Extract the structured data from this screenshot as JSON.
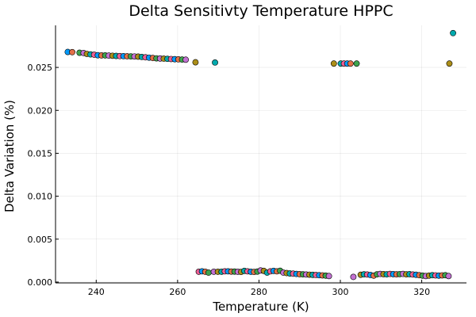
{
  "chart_data": {
    "type": "scatter",
    "title": "Delta Sensitivty Temperature HPPC",
    "xlabel": "Temperature (K)",
    "ylabel": "Delta Variation (%)",
    "xlim": [
      230,
      331
    ],
    "ylim": [
      -0.0001,
      0.0299
    ],
    "xticks": [
      {
        "value": 240,
        "label": "240"
      },
      {
        "value": 260,
        "label": "260"
      },
      {
        "value": 280,
        "label": "280"
      },
      {
        "value": 300,
        "label": "300"
      },
      {
        "value": 320,
        "label": "320"
      }
    ],
    "yticks": [
      {
        "value": 0.0,
        "label": "0.000"
      },
      {
        "value": 0.005,
        "label": "0.005"
      },
      {
        "value": 0.01,
        "label": "0.010"
      },
      {
        "value": 0.015,
        "label": "0.015"
      },
      {
        "value": 0.02,
        "label": "0.020"
      },
      {
        "value": 0.025,
        "label": "0.025"
      }
    ],
    "grid": true,
    "legend": "none",
    "palette": [
      "#009AFA",
      "#E36F47",
      "#3EA44E",
      "#C371D2",
      "#AC8E18",
      "#00AAAE",
      "#ED5E93"
    ],
    "points": [
      [
        233.0,
        0.0268
      ],
      [
        234.1,
        0.02678
      ],
      [
        235.9,
        0.02671
      ],
      [
        236.9,
        0.02668
      ],
      [
        237.7,
        0.02658
      ],
      [
        238.6,
        0.02652
      ],
      [
        239.5,
        0.02648
      ],
      [
        240.4,
        0.02642
      ],
      [
        241.3,
        0.0264
      ],
      [
        242.2,
        0.0264
      ],
      [
        243.1,
        0.02638
      ],
      [
        244.0,
        0.02636
      ],
      [
        244.9,
        0.02634
      ],
      [
        245.8,
        0.02632
      ],
      [
        246.7,
        0.02631
      ],
      [
        247.6,
        0.0263
      ],
      [
        248.5,
        0.02629
      ],
      [
        249.4,
        0.02628
      ],
      [
        250.3,
        0.02626
      ],
      [
        251.2,
        0.02622
      ],
      [
        252.1,
        0.02618
      ],
      [
        253.0,
        0.02614
      ],
      [
        253.9,
        0.0261
      ],
      [
        254.8,
        0.02606
      ],
      [
        255.7,
        0.02604
      ],
      [
        256.6,
        0.02602
      ],
      [
        257.5,
        0.026
      ],
      [
        258.4,
        0.02598
      ],
      [
        259.3,
        0.02596
      ],
      [
        260.2,
        0.02594
      ],
      [
        261.1,
        0.02592
      ],
      [
        262.0,
        0.0259
      ],
      [
        264.4,
        0.0256
      ],
      [
        269.2,
        0.02557
      ],
      [
        265.2,
        0.0012
      ],
      [
        266.0,
        0.00125
      ],
      [
        266.8,
        0.0012
      ],
      [
        267.6,
        0.0011
      ],
      [
        268.9,
        0.0012
      ],
      [
        269.9,
        0.0012
      ],
      [
        270.8,
        0.0012
      ],
      [
        271.6,
        0.00125
      ],
      [
        272.4,
        0.00125
      ],
      [
        273.2,
        0.00122
      ],
      [
        274.0,
        0.00122
      ],
      [
        274.8,
        0.0012
      ],
      [
        275.6,
        0.00118
      ],
      [
        276.4,
        0.0013
      ],
      [
        277.2,
        0.00125
      ],
      [
        278.0,
        0.0012
      ],
      [
        278.8,
        0.00118
      ],
      [
        279.6,
        0.00122
      ],
      [
        280.4,
        0.00135
      ],
      [
        281.2,
        0.0013
      ],
      [
        282.0,
        0.0011
      ],
      [
        282.8,
        0.00125
      ],
      [
        283.6,
        0.0013
      ],
      [
        284.4,
        0.00125
      ],
      [
        285.2,
        0.00132
      ],
      [
        286.0,
        0.0011
      ],
      [
        286.8,
        0.00105
      ],
      [
        287.6,
        0.001
      ],
      [
        288.4,
        0.00098
      ],
      [
        289.2,
        0.00095
      ],
      [
        290.0,
        0.00092
      ],
      [
        290.8,
        0.0009
      ],
      [
        291.6,
        0.00088
      ],
      [
        292.4,
        0.00086
      ],
      [
        293.2,
        0.00084
      ],
      [
        294.0,
        0.00082
      ],
      [
        294.8,
        0.0008
      ],
      [
        295.6,
        0.00078
      ],
      [
        296.4,
        0.00075
      ],
      [
        297.2,
        0.0007
      ],
      [
        298.4,
        0.02545
      ],
      [
        300.1,
        0.02545
      ],
      [
        300.9,
        0.02545
      ],
      [
        301.7,
        0.02545
      ],
      [
        302.5,
        0.02545
      ],
      [
        304.0,
        0.02545
      ],
      [
        303.2,
        0.0006
      ],
      [
        305.0,
        0.00085
      ],
      [
        305.8,
        0.0009
      ],
      [
        306.6,
        0.00088
      ],
      [
        307.4,
        0.00082
      ],
      [
        308.2,
        0.00075
      ],
      [
        309.0,
        0.0009
      ],
      [
        309.8,
        0.00095
      ],
      [
        310.6,
        0.00092
      ],
      [
        311.4,
        0.0009
      ],
      [
        312.2,
        0.00095
      ],
      [
        313.0,
        0.00092
      ],
      [
        313.8,
        0.0009
      ],
      [
        314.6,
        0.00093
      ],
      [
        315.4,
        0.00095
      ],
      [
        316.2,
        0.0009
      ],
      [
        317.0,
        0.00092
      ],
      [
        317.8,
        0.00088
      ],
      [
        318.6,
        0.00085
      ],
      [
        319.4,
        0.0008
      ],
      [
        320.2,
        0.00075
      ],
      [
        321.0,
        0.0007
      ],
      [
        321.8,
        0.00075
      ],
      [
        322.6,
        0.0008
      ],
      [
        323.4,
        0.00078
      ],
      [
        324.2,
        0.00075
      ],
      [
        325.0,
        0.00078
      ],
      [
        325.8,
        0.0008
      ],
      [
        326.6,
        0.0007
      ],
      [
        326.8,
        0.02545
      ],
      [
        327.7,
        0.029
      ]
    ]
  }
}
